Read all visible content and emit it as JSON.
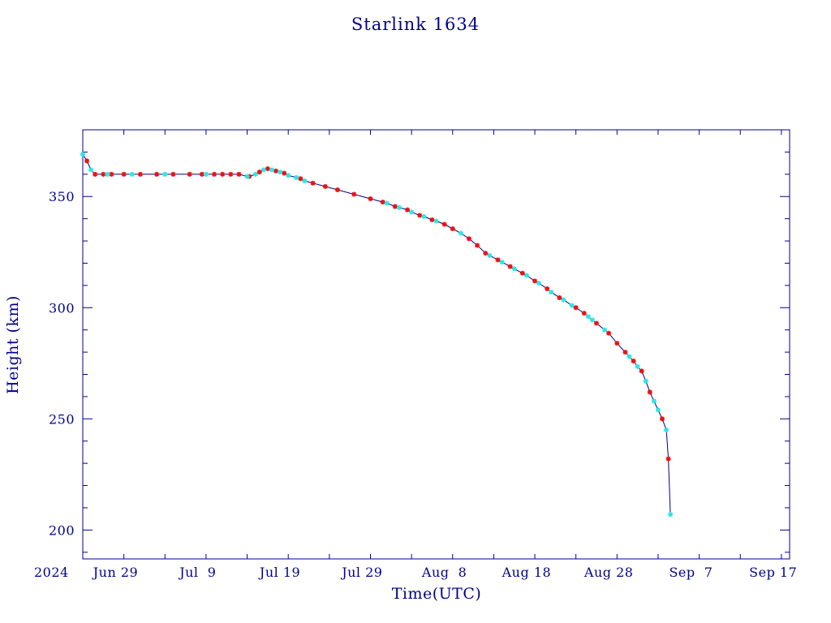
{
  "chart_data": {
    "type": "scatter",
    "title": "Starlink  1634",
    "xlabel": "Time(UTC)",
    "ylabel": "Height  (km)",
    "year_label": "2024",
    "x_type": "date",
    "xlim": [
      "2024-06-25",
      "2024-09-19"
    ],
    "ylim": [
      187,
      380
    ],
    "x_ticks": [
      {
        "date": "2024-06-29",
        "label": "Jun 29"
      },
      {
        "date": "2024-07-09",
        "label": "Jul  9"
      },
      {
        "date": "2024-07-19",
        "label": "Jul 19"
      },
      {
        "date": "2024-07-29",
        "label": "Jul 29"
      },
      {
        "date": "2024-08-08",
        "label": "Aug  8"
      },
      {
        "date": "2024-08-18",
        "label": "Aug 18"
      },
      {
        "date": "2024-08-28",
        "label": "Aug 28"
      },
      {
        "date": "2024-09-07",
        "label": "Sep  7"
      },
      {
        "date": "2024-09-17",
        "label": "Sep 17"
      }
    ],
    "y_ticks": [
      200,
      250,
      300,
      350
    ],
    "grid": false,
    "line_color": "#00008b",
    "series": [
      {
        "marker_color": "#ee1111",
        "points": [
          [
            "2024-06-25T12:00",
            366
          ],
          [
            "2024-06-26T12:00",
            360
          ],
          [
            "2024-06-27T12:00",
            360
          ],
          [
            "2024-06-28T12:00",
            360
          ],
          [
            "2024-06-30T00:00",
            360
          ],
          [
            "2024-07-02T00:00",
            360
          ],
          [
            "2024-07-04T00:00",
            360
          ],
          [
            "2024-07-06T00:00",
            360
          ],
          [
            "2024-07-08T00:00",
            360
          ],
          [
            "2024-07-09T12:00",
            360
          ],
          [
            "2024-07-11T00:00",
            360
          ],
          [
            "2024-07-12T00:00",
            360
          ],
          [
            "2024-07-13T00:00",
            360
          ],
          [
            "2024-07-14T00:00",
            360
          ],
          [
            "2024-07-15T06:00",
            359
          ],
          [
            "2024-07-16T12:00",
            361
          ],
          [
            "2024-07-17T12:00",
            362.5
          ],
          [
            "2024-07-18T12:00",
            361.5
          ],
          [
            "2024-07-19T12:00",
            360.5
          ],
          [
            "2024-07-21T12:00",
            358
          ],
          [
            "2024-07-23T00:00",
            356
          ],
          [
            "2024-07-24T12:00",
            354.5
          ],
          [
            "2024-07-26T00:00",
            353
          ],
          [
            "2024-07-28T00:00",
            351
          ],
          [
            "2024-07-30T00:00",
            349
          ],
          [
            "2024-07-31T12:00",
            347.5
          ],
          [
            "2024-08-02T00:00",
            345.5
          ],
          [
            "2024-08-03T12:00",
            344
          ],
          [
            "2024-08-05T00:00",
            341.5
          ],
          [
            "2024-08-06T12:00",
            339.5
          ],
          [
            "2024-08-08T00:00",
            337.5
          ],
          [
            "2024-08-09T00:00",
            335.5
          ],
          [
            "2024-08-11T00:00",
            331
          ],
          [
            "2024-08-12T00:00",
            328
          ],
          [
            "2024-08-13T00:00",
            324.5
          ],
          [
            "2024-08-14T12:00",
            321.5
          ],
          [
            "2024-08-16T00:00",
            318.5
          ],
          [
            "2024-08-17T12:00",
            315.5
          ],
          [
            "2024-08-19T00:00",
            312
          ],
          [
            "2024-08-20T12:00",
            308.5
          ],
          [
            "2024-08-22T00:00",
            304.5
          ],
          [
            "2024-08-24T00:00",
            300
          ],
          [
            "2024-08-25T00:00",
            297.5
          ],
          [
            "2024-08-26T12:00",
            293
          ],
          [
            "2024-08-28T00:00",
            288.5
          ],
          [
            "2024-08-29T00:00",
            284
          ],
          [
            "2024-08-30T00:00",
            280
          ],
          [
            "2024-08-31T00:00",
            276
          ],
          [
            "2024-09-01T00:00",
            271.5
          ],
          [
            "2024-09-02T00:00",
            262
          ],
          [
            "2024-09-03T12:00",
            250
          ],
          [
            "2024-09-04T06:00",
            232
          ]
        ]
      },
      {
        "marker_color": "#2ee6e6",
        "points": [
          [
            "2024-06-25T00:00",
            369
          ],
          [
            "2024-06-26T00:00",
            362
          ],
          [
            "2024-06-28T00:00",
            360
          ],
          [
            "2024-07-01T00:00",
            360
          ],
          [
            "2024-07-05T00:00",
            360
          ],
          [
            "2024-07-10T00:00",
            360
          ],
          [
            "2024-07-15T00:00",
            359
          ],
          [
            "2024-07-16T00:00",
            360
          ],
          [
            "2024-07-17T00:00",
            362
          ],
          [
            "2024-07-18T00:00",
            362
          ],
          [
            "2024-07-19T00:00",
            361
          ],
          [
            "2024-07-20T00:00",
            359.5
          ],
          [
            "2024-07-21T00:00",
            358.5
          ],
          [
            "2024-07-22T00:00",
            357
          ],
          [
            "2024-08-01T00:00",
            347
          ],
          [
            "2024-08-02T12:00",
            345
          ],
          [
            "2024-08-04T00:00",
            343
          ],
          [
            "2024-08-05T12:00",
            341
          ],
          [
            "2024-08-07T00:00",
            339
          ],
          [
            "2024-08-10T00:00",
            333.5
          ],
          [
            "2024-08-13T12:00",
            323.5
          ],
          [
            "2024-08-15T00:00",
            320.5
          ],
          [
            "2024-08-16T12:00",
            317.5
          ],
          [
            "2024-08-18T00:00",
            314.5
          ],
          [
            "2024-08-19T12:00",
            311
          ],
          [
            "2024-08-21T00:00",
            307
          ],
          [
            "2024-08-22T12:00",
            303.5
          ],
          [
            "2024-08-23T12:00",
            301
          ],
          [
            "2024-08-25T12:00",
            296
          ],
          [
            "2024-08-26T00:00",
            294.5
          ],
          [
            "2024-08-27T12:00",
            290
          ],
          [
            "2024-08-30T12:00",
            278
          ],
          [
            "2024-08-31T12:00",
            273.5
          ],
          [
            "2024-09-01T12:00",
            267
          ],
          [
            "2024-09-02T12:00",
            258
          ],
          [
            "2024-09-03T00:00",
            254
          ],
          [
            "2024-09-04T00:00",
            245
          ],
          [
            "2024-09-04T12:00",
            207
          ]
        ]
      }
    ]
  }
}
